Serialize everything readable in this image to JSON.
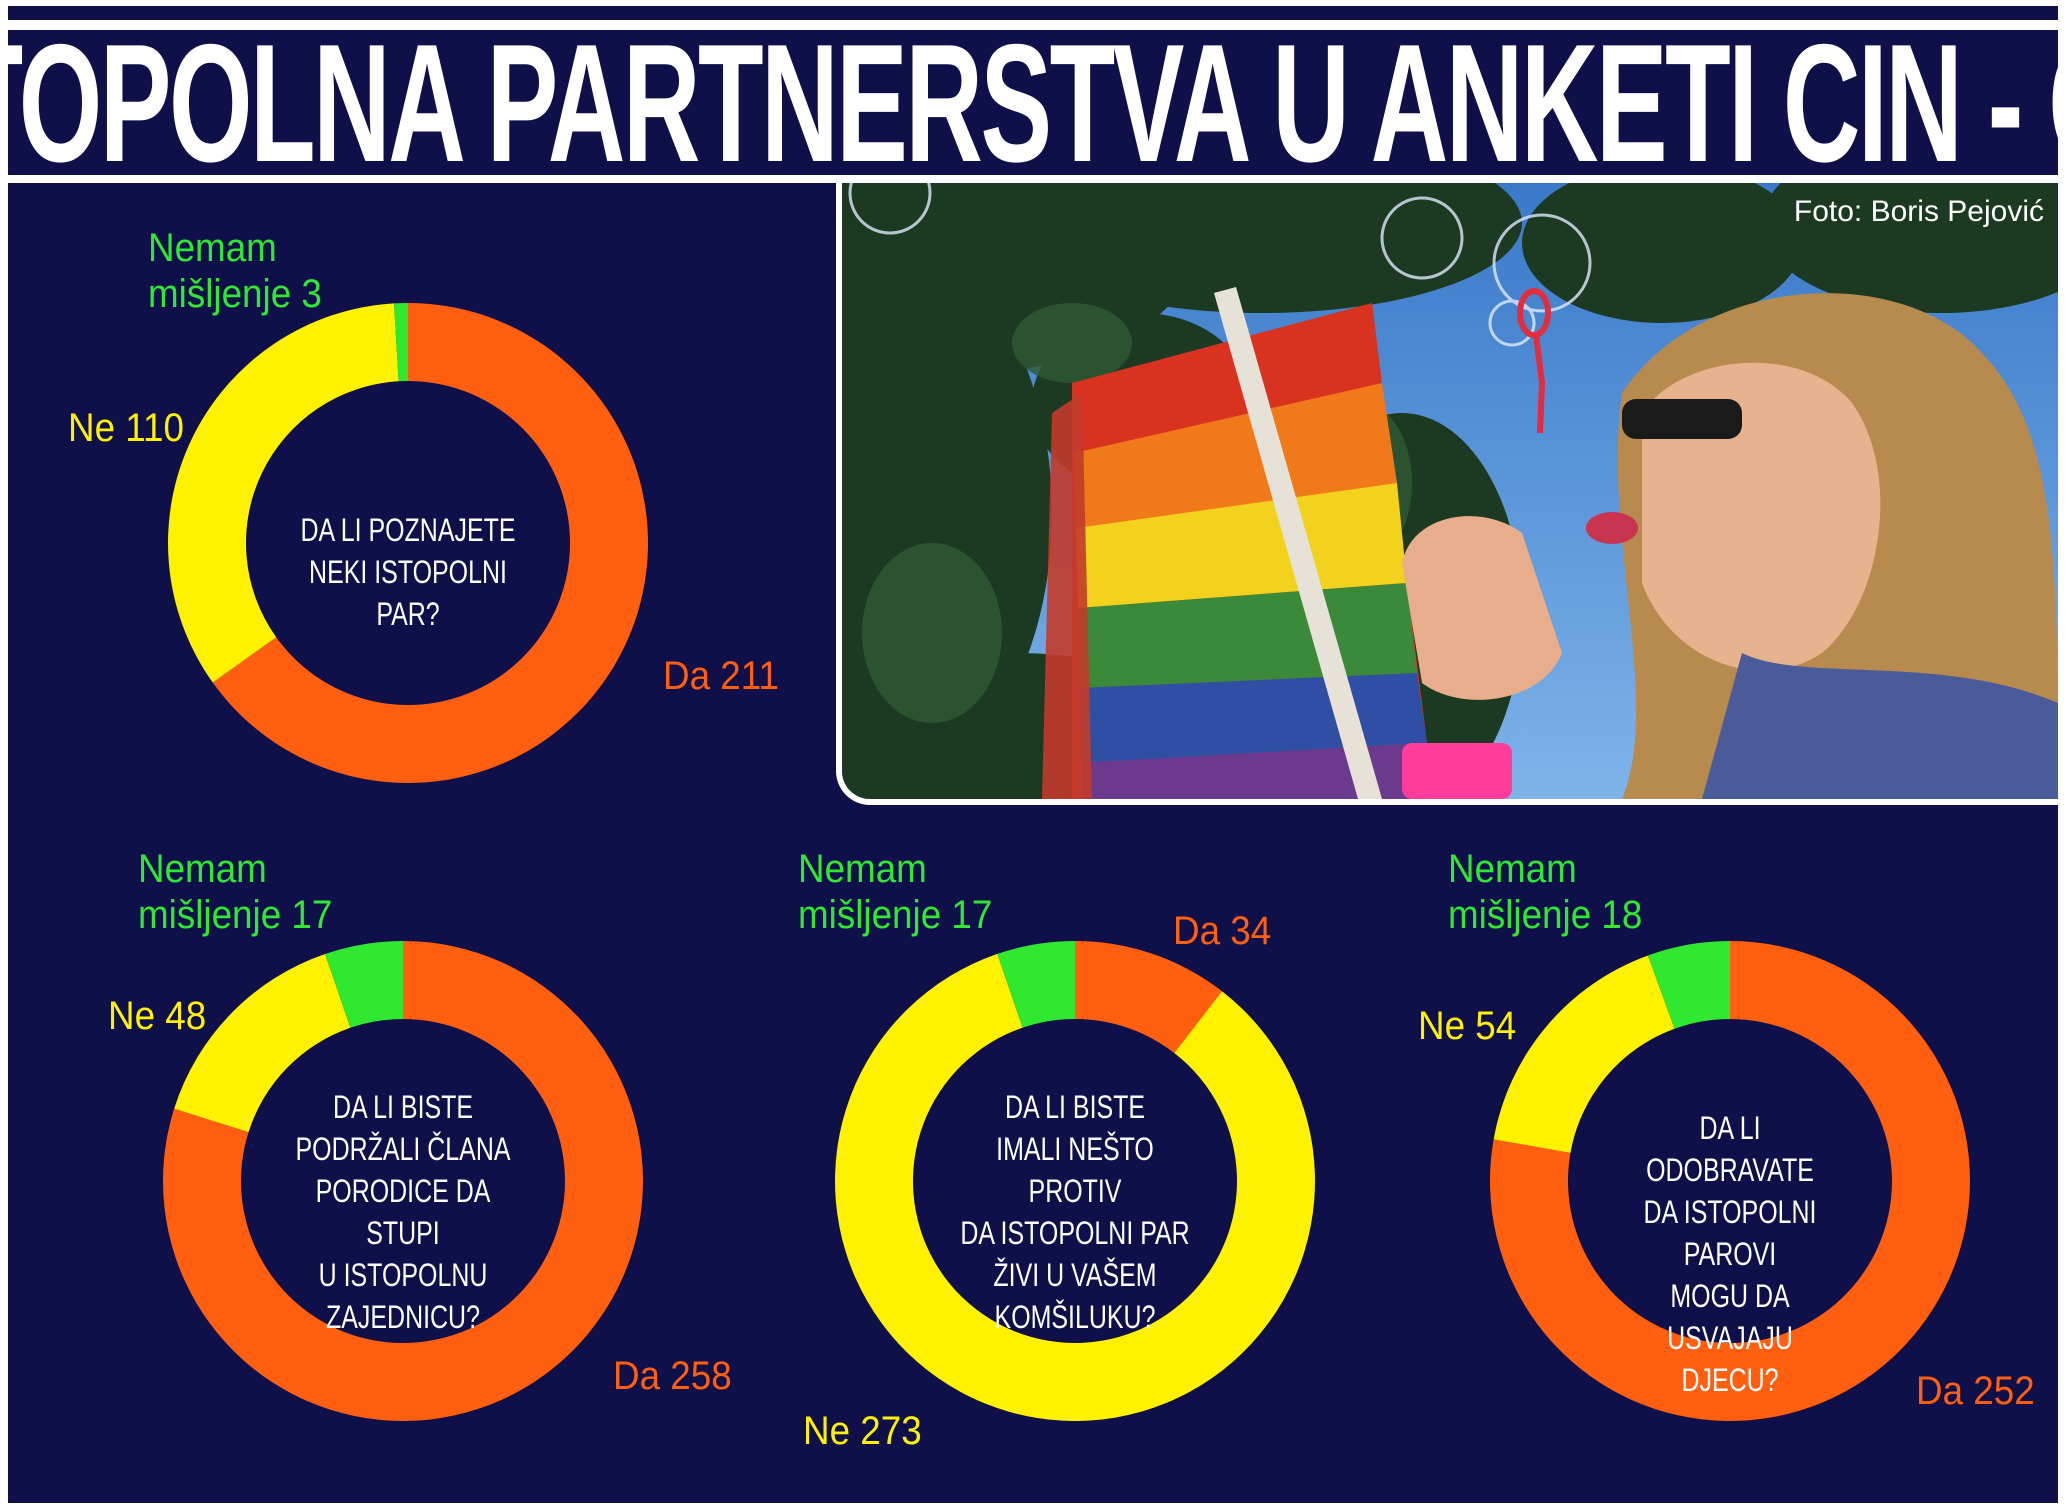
{
  "header": {
    "title": "ISTOPOLNA PARTNERSTVA U ANKETI CIN - CG"
  },
  "photo": {
    "credit": "Foto: Boris Pejović"
  },
  "colors": {
    "background": "#0f0f4a",
    "da": "#ff5f0f",
    "ne": "#fff200",
    "nemam": "#2fe82f"
  },
  "chart_data": [
    {
      "type": "pie",
      "title": "DA LI POZNAJETE NEKI ISTOPOLNI PAR?",
      "slices": [
        {
          "label": "Da",
          "value": 211,
          "text": "Da 211"
        },
        {
          "label": "Ne",
          "value": 110,
          "text": "Ne 110"
        },
        {
          "label": "Nemam mišljenje",
          "value": 3,
          "text_lines": [
            "Nemam",
            "mišljenje 3"
          ]
        }
      ]
    },
    {
      "type": "pie",
      "title": "DA LI BISTE PODRŽALI ČLANA PORODICE DA STUPI U ISTOPOLNU ZAJEDNICU?",
      "slices": [
        {
          "label": "Da",
          "value": 258,
          "text": "Da 258"
        },
        {
          "label": "Ne",
          "value": 48,
          "text": "Ne 48"
        },
        {
          "label": "Nemam mišljenje",
          "value": 17,
          "text_lines": [
            "Nemam",
            "mišljenje 17"
          ]
        }
      ]
    },
    {
      "type": "pie",
      "title": "DA LI BISTE IMALI NEŠTO PROTIV DA ISTOPOLNI PAR ŽIVI U VAŠEM KOMŠILUKU?",
      "slices": [
        {
          "label": "Da",
          "value": 34,
          "text": "Da 34"
        },
        {
          "label": "Ne",
          "value": 273,
          "text": "Ne 273"
        },
        {
          "label": "Nemam mišljenje",
          "value": 17,
          "text_lines": [
            "Nemam",
            "mišljenje 17"
          ]
        }
      ]
    },
    {
      "type": "pie",
      "title": "DA LI ODOBRAVATE DA ISTOPOLNI PAROVI MOGU DA USVAJAJU DJECU?",
      "slices": [
        {
          "label": "Da",
          "value": 252,
          "text": "Da 252"
        },
        {
          "label": "Ne",
          "value": 54,
          "text": "Ne 54"
        },
        {
          "label": "Nemam mišljenje",
          "value": 18,
          "text_lines": [
            "Nemam",
            "mišljenje 18"
          ]
        }
      ]
    }
  ],
  "questions": [
    [
      "DA LI POZNAJETE",
      "NEKI ISTOPOLNI  PAR?"
    ],
    [
      "DA LI BISTE",
      "PODRŽALI ČLANA",
      "PORODICE DA STUPI",
      "U ISTOPOLNU",
      "ZAJEDNICU?"
    ],
    [
      "DA LI BISTE",
      "IMALI NEŠTO PROTIV",
      "DA ISTOPOLNI PAR",
      "ŽIVI U VAŠEM",
      "KOMŠILUKU?"
    ],
    [
      "DA LI ODOBRAVATE",
      "DA ISTOPOLNI PAROVI",
      "MOGU DA USVAJAJU",
      "DJECU?"
    ]
  ]
}
